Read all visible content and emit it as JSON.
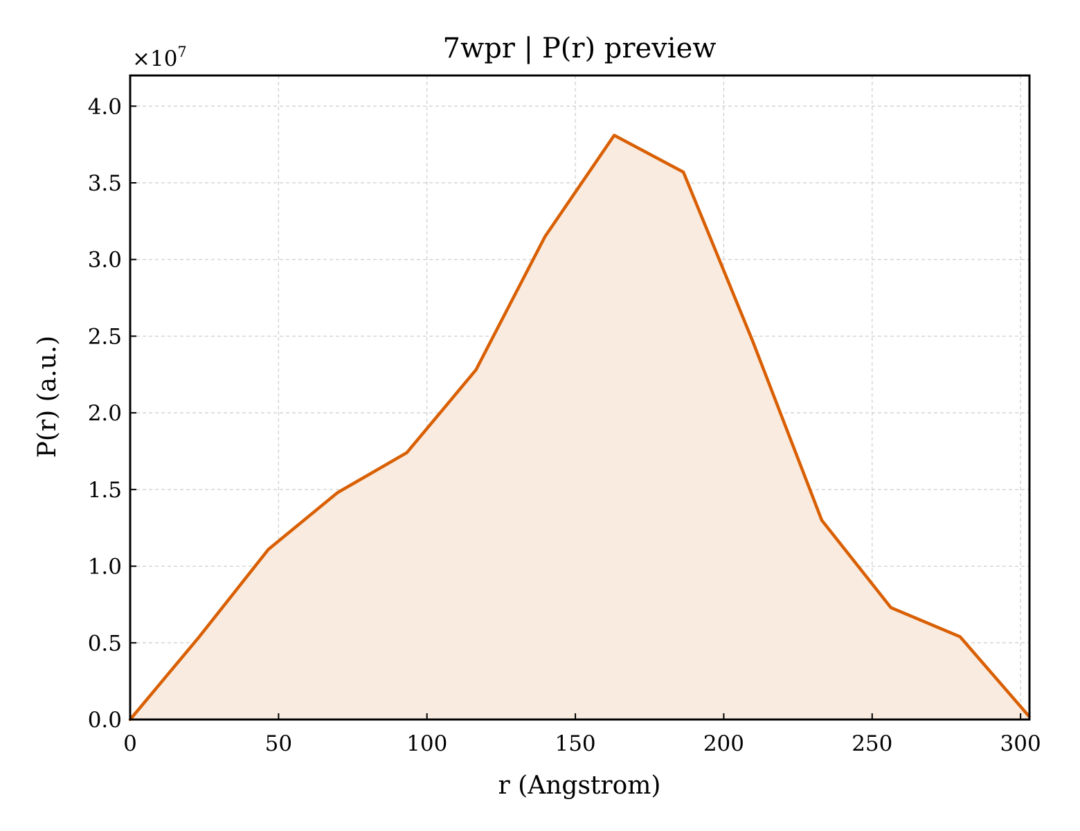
{
  "chart_data": {
    "type": "area",
    "title": "7wpr | P(r) preview",
    "xlabel": "r (Angstrom)",
    "ylabel": "P(r) (a.u.)",
    "y_multiplier_label": "×10",
    "y_multiplier_exponent": "7",
    "y_multiplier": 10000000,
    "xlim": [
      0,
      303
    ],
    "ylim": [
      0,
      4.2
    ],
    "x_ticks": [
      0,
      50,
      100,
      150,
      200,
      250,
      300
    ],
    "x_tick_labels": [
      "0",
      "50",
      "100",
      "150",
      "200",
      "250",
      "300"
    ],
    "y_ticks": [
      0,
      0.5,
      1.0,
      1.5,
      2.0,
      2.5,
      3.0,
      3.5,
      4.0
    ],
    "y_tick_labels": [
      "0.0",
      "0.5",
      "1.0",
      "1.5",
      "2.0",
      "2.5",
      "3.0",
      "3.5",
      "4.0"
    ],
    "grid": true,
    "tick_direction": "in",
    "series": [
      {
        "color": "#d95f02",
        "fill_color": "#f9ebe0",
        "x": [
          0,
          23.3,
          46.6,
          69.9,
          93.2,
          116.5,
          139.8,
          163.1,
          186.4,
          209.7,
          233.0,
          256.3,
          279.6,
          302.9
        ],
        "y": [
          0.0,
          0.54,
          1.11,
          1.48,
          1.74,
          2.28,
          3.15,
          3.81,
          3.57,
          2.47,
          1.3,
          0.73,
          0.54,
          0.02
        ]
      }
    ]
  }
}
